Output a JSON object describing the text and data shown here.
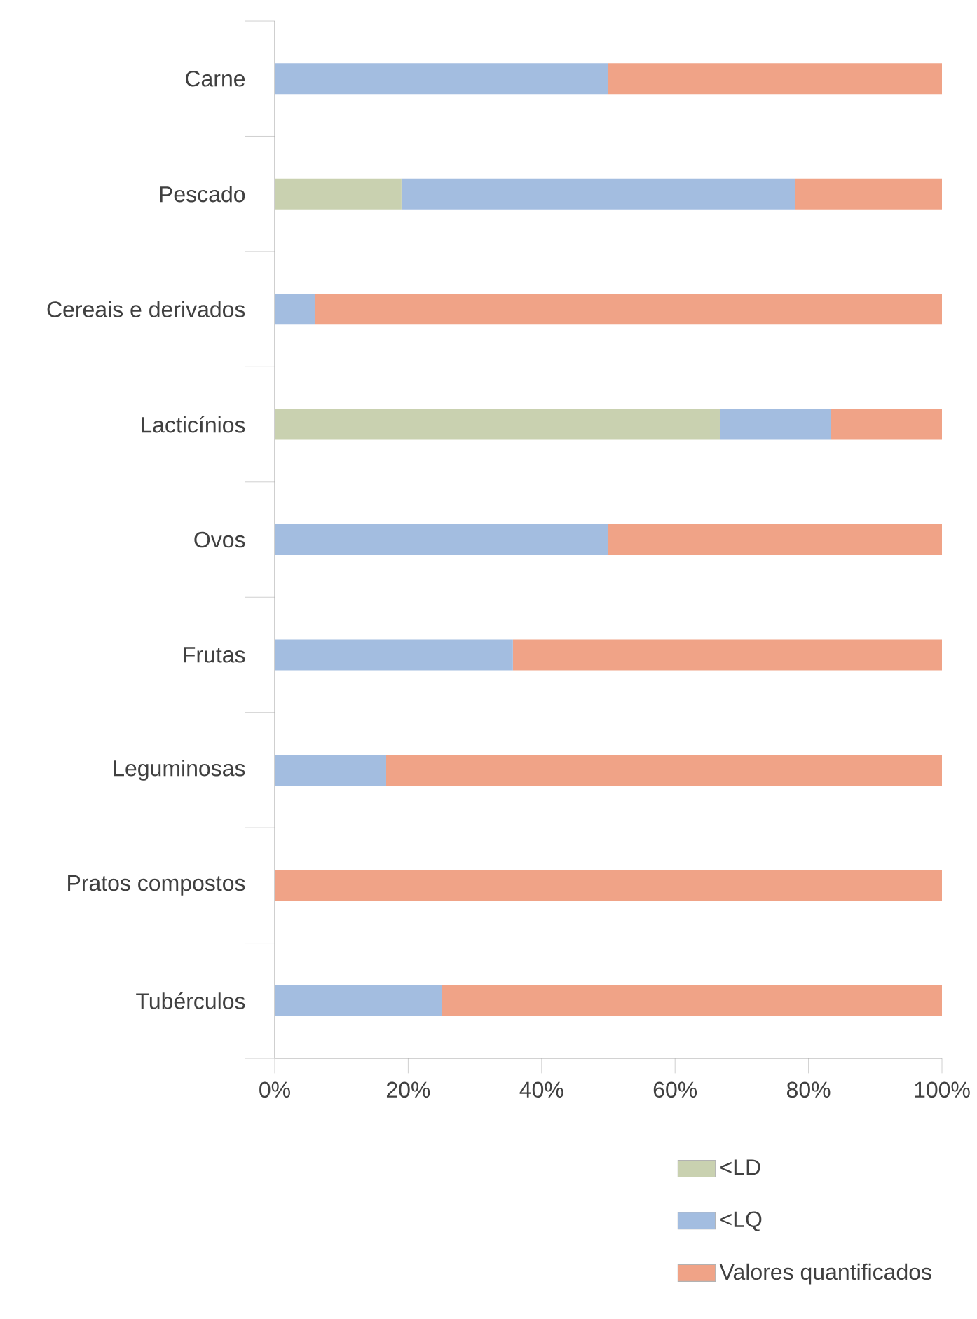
{
  "chart_data": {
    "type": "bar",
    "orientation": "horizontal",
    "stacked": true,
    "categories": [
      "Carne",
      "Pescado",
      "Cereais e derivados",
      "Lacticínios",
      "Ovos",
      "Frutas",
      "Leguminosas",
      "Pratos compostos",
      "Tubérculos"
    ],
    "series": [
      {
        "name": "<LD",
        "color": "#c9d1b0",
        "values": [
          0,
          19,
          0,
          66.7,
          0,
          0,
          0,
          0,
          0
        ]
      },
      {
        "name": "<LQ",
        "color": "#a3bde0",
        "values": [
          50,
          59,
          6,
          16.7,
          50,
          35.7,
          16.7,
          0,
          25
        ]
      },
      {
        "name": "Valores quantificados",
        "color": "#f0a387",
        "values": [
          50,
          22,
          94,
          16.6,
          50,
          64.3,
          83.3,
          100,
          75
        ]
      }
    ],
    "xlim": [
      0,
      100
    ],
    "xticks": [
      {
        "value": 0,
        "label": "0%"
      },
      {
        "value": 20,
        "label": "20%"
      },
      {
        "value": 40,
        "label": "40%"
      },
      {
        "value": 60,
        "label": "60%"
      },
      {
        "value": 80,
        "label": "80%"
      },
      {
        "value": 100,
        "label": "100%"
      }
    ],
    "grid": false,
    "legend": "bottom right"
  }
}
